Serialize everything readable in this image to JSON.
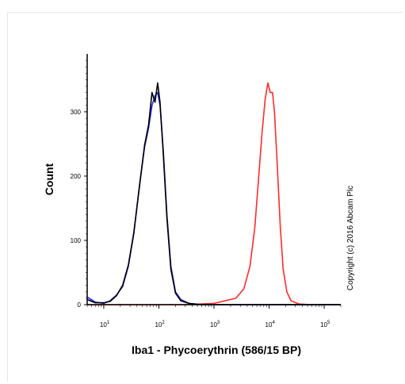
{
  "chart_data": {
    "type": "line",
    "title": "",
    "xlabel": "Iba1 - Phycoerythrin (586/15 BP)",
    "ylabel": "Count",
    "xscale": "log",
    "xlim": [
      5,
      200000
    ],
    "ylim": [
      0,
      390
    ],
    "x_ticks": [
      {
        "value": 10,
        "base": "10",
        "exp": "1"
      },
      {
        "value": 100,
        "base": "10",
        "exp": "2"
      },
      {
        "value": 1000,
        "base": "10",
        "exp": "3"
      },
      {
        "value": 10000,
        "base": "10",
        "exp": "4"
      },
      {
        "value": 100000,
        "base": "10",
        "exp": "5"
      }
    ],
    "y_ticks": [
      0,
      100,
      200,
      300
    ],
    "grid": false,
    "legend": "none",
    "annotation": "Copyright (c) 2016 Abcam Plc",
    "series": [
      {
        "color": "#ff2a2a",
        "x": [
          5,
          300,
          1000,
          2500,
          3500,
          4500,
          5500,
          6500,
          7500,
          8500,
          9500,
          10500,
          11500,
          12500,
          14000,
          16000,
          18000,
          21000,
          25000,
          35000,
          60000,
          200000
        ],
        "y": [
          0,
          0,
          2,
          10,
          25,
          60,
          120,
          200,
          270,
          320,
          345,
          330,
          330,
          300,
          220,
          120,
          55,
          20,
          6,
          1,
          0,
          0
        ]
      },
      {
        "color": "#2a2aff",
        "x": [
          5,
          7,
          10,
          13,
          17,
          22,
          28,
          35,
          45,
          55,
          65,
          75,
          85,
          95,
          105,
          120,
          140,
          165,
          200,
          250,
          350,
          600,
          1000,
          200000
        ],
        "y": [
          12,
          4,
          2,
          6,
          15,
          28,
          60,
          110,
          190,
          245,
          275,
          310,
          325,
          330,
          310,
          240,
          140,
          60,
          20,
          8,
          2,
          0,
          0,
          0
        ]
      },
      {
        "color": "#000000",
        "x": [
          5,
          7,
          10,
          13,
          17,
          22,
          28,
          35,
          45,
          55,
          65,
          75,
          85,
          95,
          105,
          120,
          140,
          165,
          200,
          250,
          350,
          600,
          1000,
          200000
        ],
        "y": [
          8,
          3,
          3,
          5,
          14,
          30,
          62,
          112,
          188,
          248,
          280,
          330,
          315,
          345,
          315,
          235,
          135,
          55,
          18,
          6,
          2,
          0,
          0,
          0
        ]
      }
    ]
  }
}
